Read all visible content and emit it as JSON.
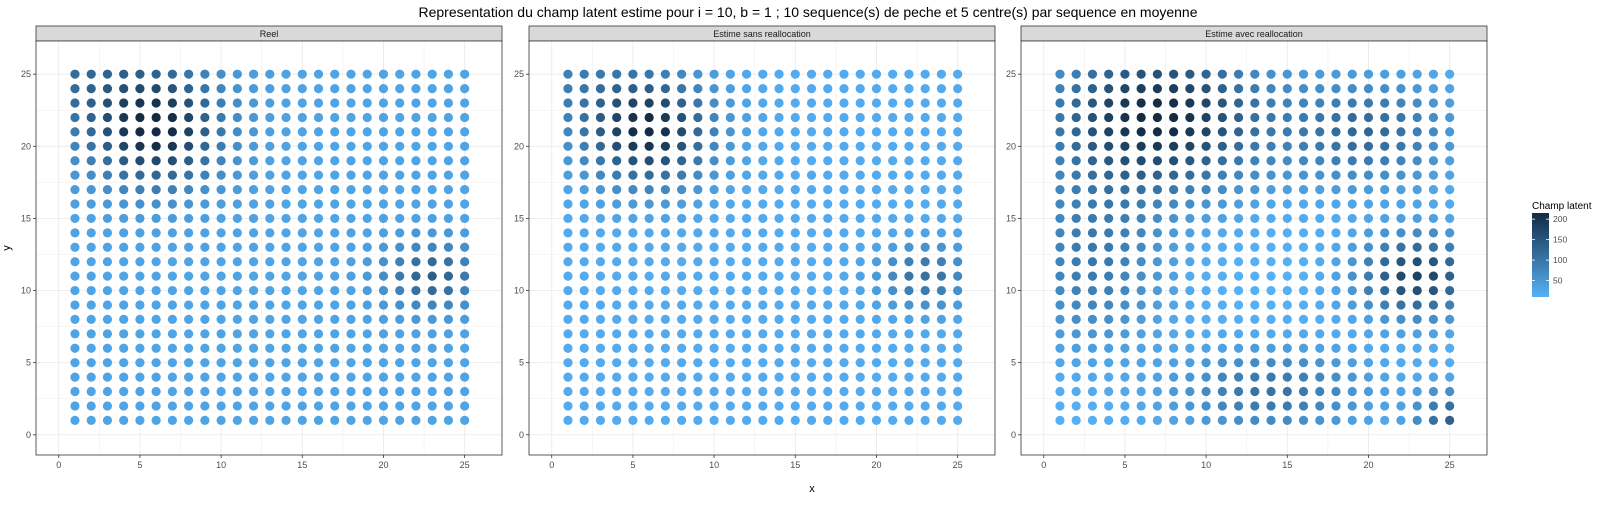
{
  "title": "Representation du champ latent estime pour i = 10, b = 1 ; 10 sequence(s) de peche et 5 centre(s) par sequence en moyenne",
  "colors": {
    "low": "#56B1F7",
    "high": "#132B43",
    "strip_fill": "#D9D9D9",
    "grid": "#EBEBEB"
  },
  "chart_data": {
    "type": "heatmap",
    "title": "Representation du champ latent estime pour i = 10, b = 1 ; 10 sequence(s) de peche et 5 centre(s) par sequence en moyenne",
    "xlabel": "x",
    "ylabel": "y",
    "xlim": [
      1,
      25
    ],
    "ylim": [
      1,
      25
    ],
    "x_ticks": [
      0,
      5,
      10,
      15,
      20,
      25
    ],
    "y_ticks": [
      0,
      5,
      10,
      15,
      20,
      25
    ],
    "grid": true,
    "legend": {
      "title": "Champ latent",
      "position": "right",
      "ticks": [
        50,
        100,
        150,
        200
      ],
      "range": [
        10,
        215
      ]
    },
    "grid_x": [
      1,
      2,
      3,
      4,
      5,
      6,
      7,
      8,
      9,
      10,
      11,
      12,
      13,
      14,
      15,
      16,
      17,
      18,
      19,
      20,
      21,
      22,
      23,
      24,
      25
    ],
    "grid_y": [
      1,
      2,
      3,
      4,
      5,
      6,
      7,
      8,
      9,
      10,
      11,
      12,
      13,
      14,
      15,
      16,
      17,
      18,
      19,
      20,
      21,
      22,
      23,
      24,
      25
    ],
    "panels": [
      {
        "name": "Reel",
        "value_model": {
          "base": 30,
          "hotspots": [
            {
              "x": 6,
              "y": 21,
              "peak": 180,
              "sx": 2.7,
              "sy": 2.6
            },
            {
              "x": 23,
              "y": 11,
              "peak": 105,
              "sx": 2.0,
              "sy": 1.6
            },
            {
              "x": 1,
              "y": 25,
              "peak": 75,
              "sx": 5.0,
              "sy": 3.0
            }
          ]
        }
      },
      {
        "name": "Estime sans reallocation",
        "value_model": {
          "base": 20,
          "hotspots": [
            {
              "x": 6,
              "y": 21,
              "peak": 190,
              "sx": 2.6,
              "sy": 2.5
            },
            {
              "x": 23,
              "y": 11,
              "peak": 90,
              "sx": 1.9,
              "sy": 1.5
            },
            {
              "x": 1,
              "y": 25,
              "peak": 55,
              "sx": 4.0,
              "sy": 3.0
            }
          ]
        }
      },
      {
        "name": "Estime avec reallocation",
        "value_model": {
          "base": 10,
          "hotspots": [
            {
              "x": 7,
              "y": 22,
              "peak": 210,
              "sx": 4.5,
              "sy": 3.5
            },
            {
              "x": 23,
              "y": 11,
              "peak": 170,
              "sx": 2.5,
              "sy": 2.0
            },
            {
              "x": 20,
              "y": 21,
              "peak": 110,
              "sx": 3.5,
              "sy": 2.5
            },
            {
              "x": 3,
              "y": 12,
              "peak": 85,
              "sx": 3.0,
              "sy": 4.0
            },
            {
              "x": 14,
              "y": 3,
              "peak": 95,
              "sx": 4.0,
              "sy": 2.0
            },
            {
              "x": 25,
              "y": 1,
              "peak": 120,
              "sx": 1.5,
              "sy": 1.5
            }
          ]
        }
      }
    ]
  }
}
